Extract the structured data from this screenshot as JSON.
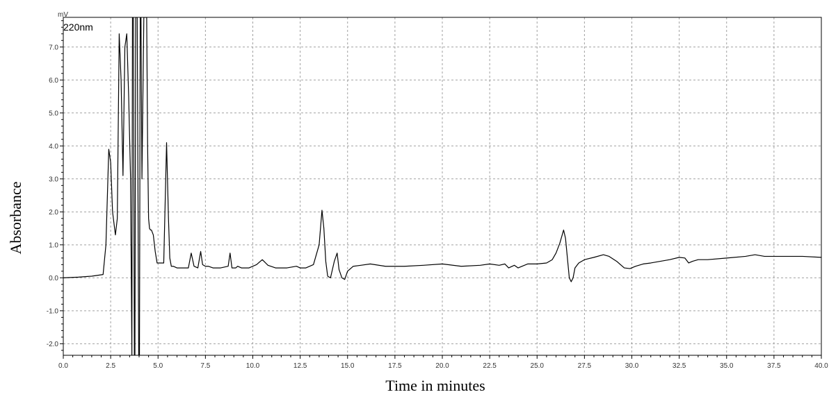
{
  "chart_data": {
    "type": "line",
    "channel_label": "220nm",
    "y_unit": "mV",
    "xlabel": "Time in minutes",
    "ylabel": "Absorbance",
    "xlim": [
      0,
      40
    ],
    "ylim": [
      -2.35,
      7.9
    ],
    "x_ticks": [
      "0.0",
      "2.5",
      "5.0",
      "7.5",
      "10.0",
      "12.5",
      "15.0",
      "17.5",
      "20.0",
      "22.5",
      "25.0",
      "27.5",
      "30.0",
      "32.5",
      "35.0",
      "37.5",
      "40.0"
    ],
    "y_ticks": [
      "-2.0",
      "-1.0",
      "0.0",
      "1.0",
      "2.0",
      "3.0",
      "4.0",
      "5.0",
      "6.0",
      "7.0"
    ],
    "grid": true,
    "colors": {
      "trace": "#000000",
      "grid": "#a0a0a0",
      "axis": "#000000"
    },
    "series": [
      {
        "x": [
          0.0,
          0.8,
          1.5,
          2.1,
          2.25,
          2.4,
          2.5,
          2.6,
          2.75,
          2.85,
          2.95,
          3.05,
          3.15,
          3.25,
          3.35,
          3.45,
          3.55,
          3.62,
          3.65,
          3.7,
          3.75,
          3.78,
          3.82,
          3.9,
          3.98,
          4.02,
          4.06,
          4.1,
          4.15,
          4.25,
          4.35,
          4.4,
          4.45,
          4.5,
          4.55,
          4.6,
          4.65,
          4.75,
          4.85,
          4.95,
          5.1,
          5.3,
          5.45,
          5.55,
          5.62,
          5.7,
          5.8,
          6.0,
          6.3,
          6.6,
          6.75,
          6.9,
          7.1,
          7.25,
          7.35,
          7.5,
          7.65,
          7.9,
          8.3,
          8.7,
          8.8,
          8.9,
          9.1,
          9.2,
          9.4,
          9.8,
          10.2,
          10.5,
          10.8,
          11.2,
          11.8,
          12.3,
          12.5,
          12.8,
          13.2,
          13.5,
          13.65,
          13.75,
          13.85,
          13.95,
          14.1,
          14.3,
          14.45,
          14.55,
          14.7,
          14.85,
          15.0,
          15.3,
          15.7,
          16.2,
          17.0,
          18.0,
          19.0,
          20.0,
          21.0,
          22.0,
          22.5,
          23.0,
          23.3,
          23.5,
          23.8,
          24.0,
          24.5,
          25.0,
          25.5,
          25.8,
          26.0,
          26.2,
          26.4,
          26.5,
          26.6,
          26.7,
          26.8,
          26.9,
          27.0,
          27.2,
          27.5,
          28.0,
          28.5,
          28.8,
          29.2,
          29.6,
          29.9,
          30.2,
          30.6,
          31.0,
          31.5,
          32.0,
          32.5,
          32.8,
          33.0,
          33.2,
          33.5,
          34.0,
          35.0,
          36.0,
          36.5,
          37.0,
          38.0,
          39.0,
          40.0
        ],
        "y": [
          0.0,
          0.02,
          0.05,
          0.1,
          1.0,
          3.9,
          3.5,
          2.0,
          1.3,
          1.8,
          7.4,
          6.0,
          3.1,
          7.0,
          7.4,
          5.5,
          3.0,
          -2.35,
          7.9,
          7.9,
          -2.35,
          -2.35,
          7.9,
          7.9,
          -2.35,
          -2.35,
          7.9,
          7.9,
          3.0,
          7.9,
          7.9,
          7.9,
          4.0,
          1.8,
          1.5,
          1.45,
          1.45,
          1.3,
          0.8,
          0.45,
          0.45,
          0.45,
          4.1,
          1.8,
          0.6,
          0.35,
          0.35,
          0.3,
          0.3,
          0.3,
          0.75,
          0.35,
          0.3,
          0.8,
          0.4,
          0.35,
          0.35,
          0.3,
          0.3,
          0.35,
          0.75,
          0.3,
          0.3,
          0.35,
          0.3,
          0.3,
          0.4,
          0.55,
          0.38,
          0.3,
          0.3,
          0.35,
          0.3,
          0.3,
          0.4,
          1.0,
          2.05,
          1.5,
          0.5,
          0.05,
          0.0,
          0.5,
          0.75,
          0.25,
          0.0,
          -0.05,
          0.2,
          0.35,
          0.38,
          0.42,
          0.35,
          0.35,
          0.38,
          0.42,
          0.35,
          0.38,
          0.42,
          0.38,
          0.42,
          0.3,
          0.38,
          0.3,
          0.42,
          0.42,
          0.45,
          0.55,
          0.75,
          1.05,
          1.45,
          1.2,
          0.6,
          0.0,
          -0.12,
          0.0,
          0.3,
          0.45,
          0.55,
          0.62,
          0.7,
          0.65,
          0.5,
          0.3,
          0.28,
          0.35,
          0.42,
          0.45,
          0.5,
          0.55,
          0.62,
          0.6,
          0.45,
          0.5,
          0.55,
          0.55,
          0.6,
          0.65,
          0.7,
          0.65,
          0.65,
          0.65,
          0.62
        ]
      }
    ]
  }
}
